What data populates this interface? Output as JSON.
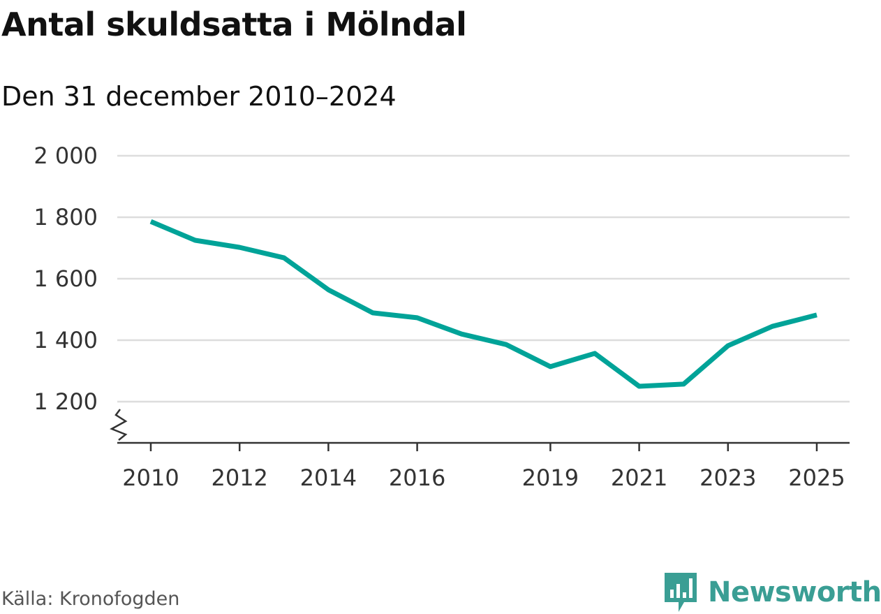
{
  "title": "Antal skuldsatta i Mölndal",
  "subtitle": "Den 31 december 2010–2024",
  "source": "Källa: Kronofogden",
  "logo_text": "Newsworthy",
  "colors": {
    "line": "#00a398",
    "grid": "#dddddd",
    "axis": "#333333",
    "logo": "#3a9e94"
  },
  "chart_data": {
    "type": "line",
    "title": "Antal skuldsatta i Mölndal",
    "subtitle": "Den 31 december 2010–2024",
    "xlabel": "",
    "ylabel": "",
    "ylim": [
      1100,
      2000
    ],
    "xlim": [
      2010,
      2025
    ],
    "grid": true,
    "y_axis_break": true,
    "yticks": [
      1200,
      1400,
      1600,
      1800,
      2000
    ],
    "ytick_labels": [
      "1 200",
      "1 400",
      "1 600",
      "1 800",
      "2 000"
    ],
    "xticks": [
      2010,
      2012,
      2014,
      2016,
      2019,
      2021,
      2023,
      2025
    ],
    "xtick_labels": [
      "2010",
      "2012",
      "2014",
      "2016",
      "2019",
      "2021",
      "2023",
      "2025"
    ],
    "series": [
      {
        "name": "Antal skuldsatta",
        "x": [
          2010,
          2011,
          2012,
          2013,
          2014,
          2015,
          2016,
          2017,
          2018,
          2019,
          2020,
          2021,
          2022,
          2023,
          2024,
          2025
        ],
        "values": [
          1786,
          1725,
          1702,
          1668,
          1564,
          1489,
          1473,
          1420,
          1386,
          1314,
          1357,
          1250,
          1257,
          1382,
          1445,
          1482
        ]
      }
    ]
  }
}
